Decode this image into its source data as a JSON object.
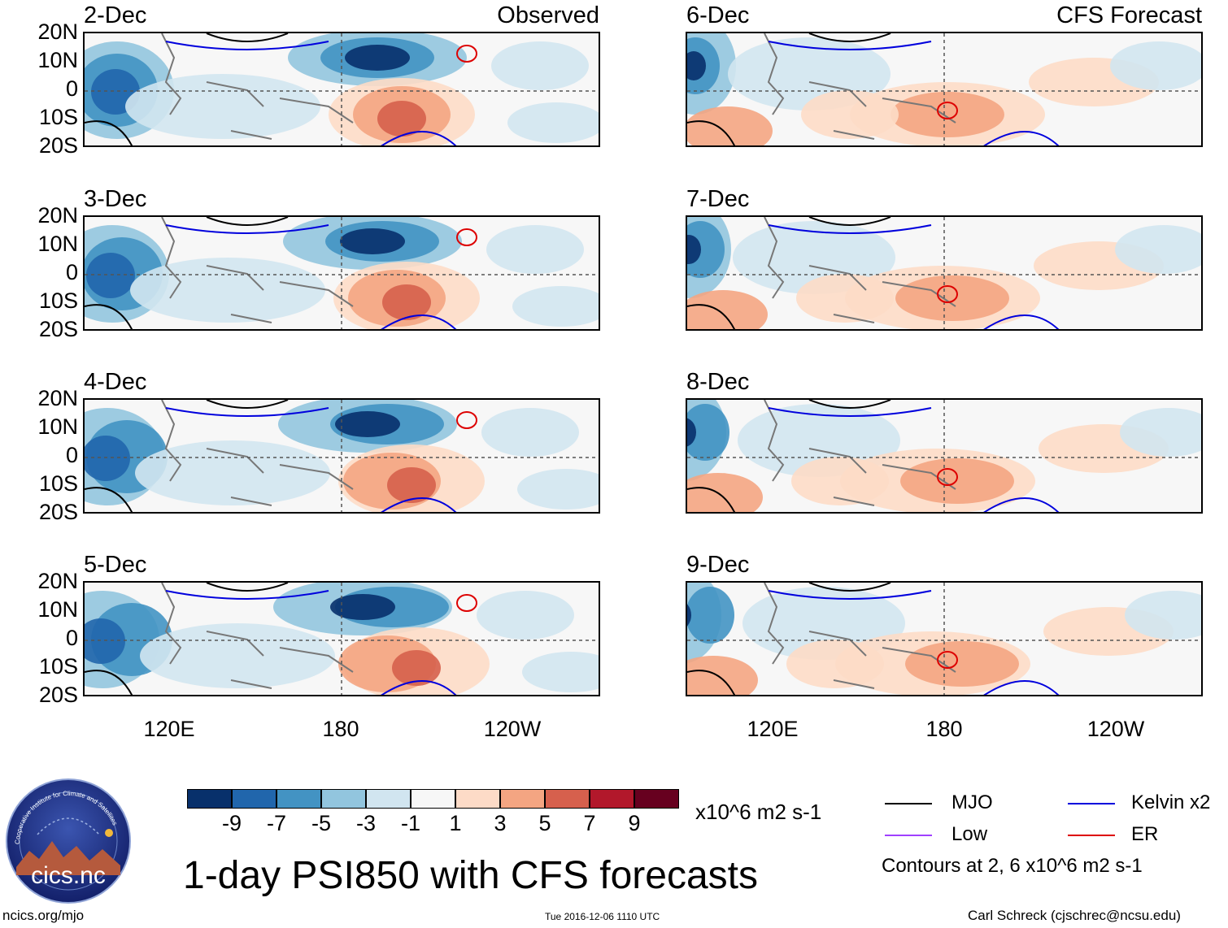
{
  "header": {
    "observed_label": "Observed",
    "forecast_label": "CFS Forecast"
  },
  "panels": [
    {
      "date": "2-Dec",
      "type": "observed"
    },
    {
      "date": "3-Dec",
      "type": "observed"
    },
    {
      "date": "4-Dec",
      "type": "observed"
    },
    {
      "date": "5-Dec",
      "type": "observed"
    },
    {
      "date": "6-Dec",
      "type": "forecast"
    },
    {
      "date": "7-Dec",
      "type": "forecast"
    },
    {
      "date": "8-Dec",
      "type": "forecast"
    },
    {
      "date": "9-Dec",
      "type": "forecast"
    }
  ],
  "axes": {
    "lat_labels": [
      "20N",
      "10N",
      "0",
      "10S",
      "20S"
    ],
    "lon_labels": [
      "120E",
      "180",
      "120W"
    ]
  },
  "colorbar": {
    "ticks": [
      "-9",
      "-7",
      "-5",
      "-3",
      "-1",
      "1",
      "3",
      "5",
      "7",
      "9"
    ],
    "colors": [
      "#08306b",
      "#2166ac",
      "#4393c3",
      "#92c5de",
      "#d1e5f0",
      "#f7f7f7",
      "#fddbc7",
      "#f4a582",
      "#d6604d",
      "#b2182b",
      "#67001f"
    ],
    "units": "x10^6 m2 s-1"
  },
  "legend": {
    "items": [
      {
        "label": "MJO",
        "color": "#000000"
      },
      {
        "label": "Kelvin x2",
        "color": "#0000dd"
      },
      {
        "label": "Low",
        "color": "#a040ff"
      },
      {
        "label": "ER",
        "color": "#dd0000"
      }
    ],
    "contours_note": "Contours at 2, 6 x10^6 m2 s-1"
  },
  "title": "1-day PSI850 with CFS forecasts",
  "logo_text": "cics.nc",
  "logo_ring_text": "Cooperative Institute for Climate and Satellites",
  "footer": {
    "url": "ncics.org/mjo",
    "timestamp": "Tue 2016-12-06 1110 UTC",
    "credit": "Carl Schreck (cjschrec@ncsu.edu)"
  }
}
